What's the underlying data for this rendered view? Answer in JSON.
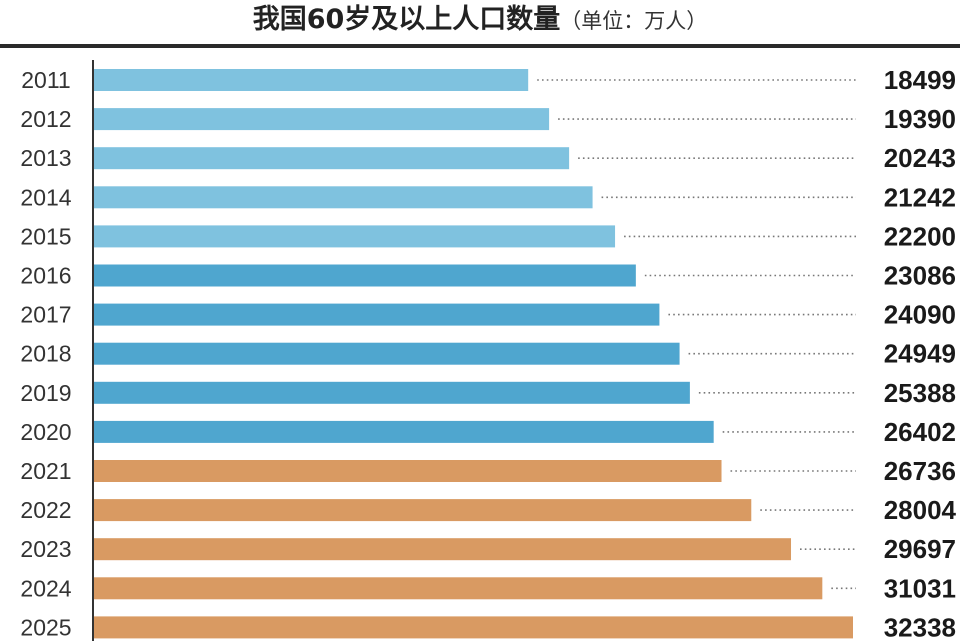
{
  "title": {
    "main": "我国60岁及以上人口数量",
    "unit": "（单位：万人）"
  },
  "colors": {
    "light_blue": "#7fc2df",
    "mid_blue": "#4fa6cf",
    "orange": "#d99a62",
    "dots": "#777777",
    "axis": "#333333"
  },
  "chart_data": {
    "type": "bar",
    "orientation": "horizontal",
    "title": "我国60岁及以上人口数量（单位：万人）",
    "categories": [
      "2011",
      "2012",
      "2013",
      "2014",
      "2015",
      "2016",
      "2017",
      "2018",
      "2019",
      "2020",
      "2021",
      "2022",
      "2023",
      "2024",
      "2025"
    ],
    "values": [
      18499,
      19390,
      20243,
      21242,
      22200,
      23086,
      24090,
      24949,
      25388,
      26402,
      26736,
      28004,
      29697,
      31031,
      32338
    ],
    "bar_colors": [
      "light_blue",
      "light_blue",
      "light_blue",
      "light_blue",
      "light_blue",
      "mid_blue",
      "mid_blue",
      "mid_blue",
      "mid_blue",
      "mid_blue",
      "orange",
      "orange",
      "orange",
      "orange",
      "orange"
    ],
    "xlim": [
      0,
      32338
    ],
    "grid": false,
    "data_labels": "right-aligned with dotted leaders"
  }
}
